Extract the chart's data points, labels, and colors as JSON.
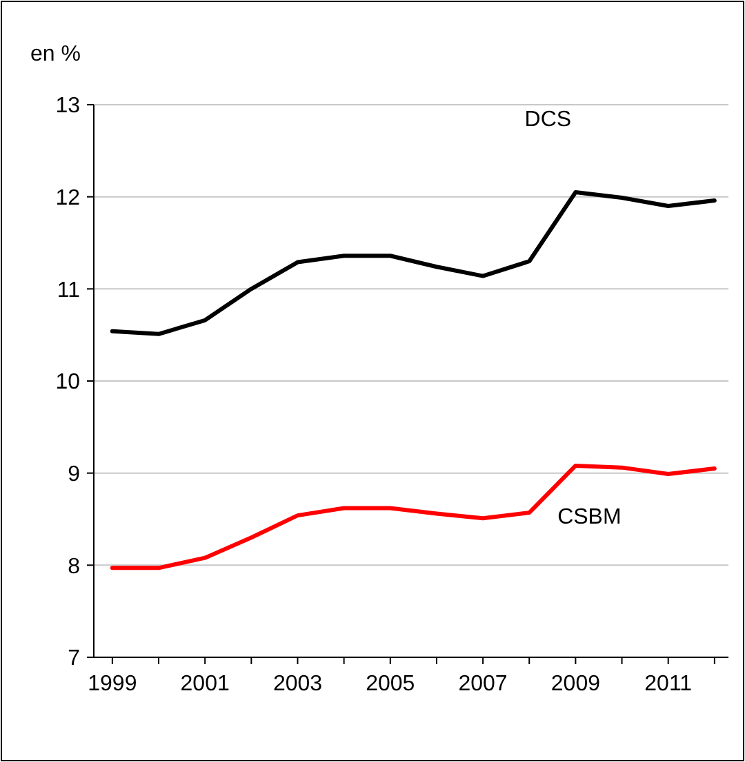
{
  "chart_data": {
    "type": "line",
    "ylabel": "en %",
    "x": [
      1999,
      2000,
      2001,
      2002,
      2003,
      2004,
      2005,
      2006,
      2007,
      2008,
      2009,
      2010,
      2011,
      2012
    ],
    "series": [
      {
        "name": "DCS",
        "color": "#000000",
        "values": [
          10.54,
          10.51,
          10.66,
          11.0,
          11.29,
          11.36,
          11.36,
          11.24,
          11.14,
          11.3,
          12.05,
          11.99,
          11.9,
          11.96
        ]
      },
      {
        "name": "CSBM",
        "color": "#ff0000",
        "values": [
          7.97,
          7.97,
          8.08,
          8.3,
          8.54,
          8.62,
          8.62,
          8.56,
          8.51,
          8.57,
          9.08,
          9.06,
          8.99,
          9.05
        ]
      }
    ],
    "xlim": [
      1998.6,
      2012.3
    ],
    "xticks": [
      1999,
      {
        "value": 2000,
        "label": null
      },
      2001,
      {
        "value": 2002,
        "label": null
      },
      2003,
      {
        "value": 2004,
        "label": null
      },
      2005,
      {
        "value": 2006,
        "label": null
      },
      2007,
      {
        "value": 2008,
        "label": null
      },
      2009,
      {
        "value": 2010,
        "label": null
      },
      2011,
      {
        "value": 2012,
        "label": null
      }
    ],
    "ylim": [
      7,
      13
    ],
    "yticks": [
      7,
      8,
      9,
      10,
      11,
      12,
      13
    ],
    "grid": "y",
    "line_style": "solid",
    "marker": "none"
  }
}
